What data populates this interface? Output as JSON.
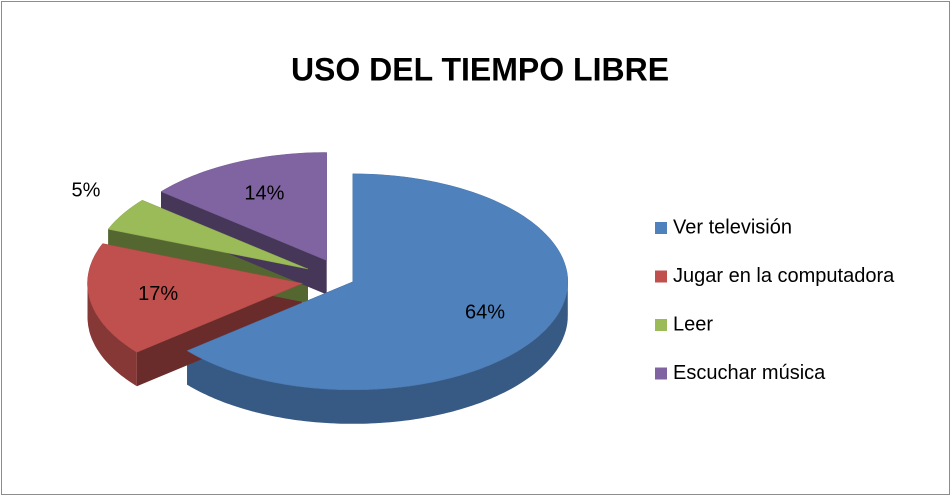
{
  "chart_data": {
    "type": "pie",
    "title": "USO DEL TIEMPO LIBRE",
    "categories": [
      "Ver televisión",
      "Jugar en la computadora",
      "Leer",
      "Escuchar música"
    ],
    "values": [
      64,
      17,
      5,
      14
    ],
    "value_labels": [
      "64%",
      "17%",
      "5%",
      "14%"
    ],
    "colors": [
      "#4f81bd",
      "#c0504d",
      "#9bbb59",
      "#8064a2"
    ],
    "legend": "right"
  }
}
